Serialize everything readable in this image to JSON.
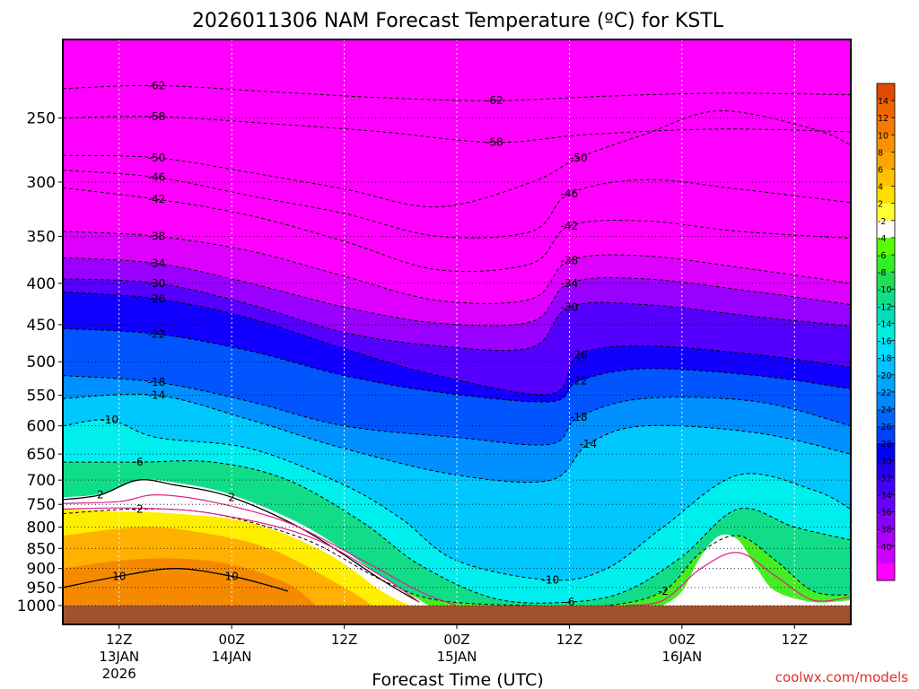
{
  "chart_data": {
    "type": "heatmap",
    "title": "2026011306 NAM Forecast Temperature (ºC) for KSTL",
    "xlabel": "Forecast Time (UTC)",
    "ylabel": "",
    "watermark": "coolwx.com/models",
    "y_scale": "log-pressure",
    "ylim": [
      1000,
      200
    ],
    "y_ticks": [
      250,
      300,
      350,
      400,
      450,
      500,
      550,
      600,
      650,
      700,
      750,
      800,
      850,
      900,
      950,
      1000
    ],
    "y_tick_labels": [
      "250",
      "300",
      "350",
      "400",
      "450",
      "500",
      "550",
      "600",
      "650",
      "700",
      "750",
      "800",
      "850",
      "900",
      "950",
      "1000"
    ],
    "x_range_hours": [
      0,
      84
    ],
    "x_ticks": [
      {
        "hour": 6,
        "line1": "12Z",
        "line2": "13JAN",
        "line3": "2026"
      },
      {
        "hour": 18,
        "line1": "00Z",
        "line2": "14JAN",
        "line3": ""
      },
      {
        "hour": 30,
        "line1": "12Z",
        "line2": "",
        "line3": ""
      },
      {
        "hour": 42,
        "line1": "00Z",
        "line2": "15JAN",
        "line3": ""
      },
      {
        "hour": 54,
        "line1": "12Z",
        "line2": "",
        "line3": ""
      },
      {
        "hour": 66,
        "line1": "00Z",
        "line2": "16JAN",
        "line3": ""
      },
      {
        "hour": 78,
        "line1": "12Z",
        "line2": "",
        "line3": ""
      }
    ],
    "grid": true,
    "surface_pressure": 1000,
    "surface_color": "#a0522d",
    "colorbar": {
      "placement": "right",
      "labels": [
        "14",
        "12",
        "10",
        "8",
        "6",
        "4",
        "2",
        "-2",
        "-4",
        "-6",
        "-8",
        "-10",
        "-12",
        "-14",
        "-16",
        "-18",
        "-20",
        "-22",
        "-24",
        "-26",
        "-28",
        "-30",
        "-32",
        "-34",
        "-36",
        "-38",
        "-40"
      ],
      "colors": [
        "#e04a00",
        "#ee6400",
        "#f57a00",
        "#fa9000",
        "#ffa500",
        "#ffc000",
        "#ffdd00",
        "#ffff33",
        "#ffffff",
        "#55ff00",
        "#33ee22",
        "#22dd55",
        "#11dd88",
        "#00ddbb",
        "#00eedd",
        "#00ddff",
        "#00c0ff",
        "#00a5ff",
        "#0088ff",
        "#0066ff",
        "#0040ff",
        "#0000ff",
        "#2200ee",
        "#4400ff",
        "#6600ff",
        "#8800ff",
        "#aa00ff",
        "#cc00ff",
        "#ff00ff"
      ]
    },
    "isotherms": [
      {
        "temp": -62,
        "label": "-62",
        "points": [
          [
            0,
            230
          ],
          [
            10,
            228
          ],
          [
            22,
            232
          ],
          [
            34,
            236
          ],
          [
            46,
            238
          ],
          [
            58,
            235
          ],
          [
            70,
            233
          ],
          [
            84,
            234
          ]
        ]
      },
      {
        "temp": -58,
        "label": "-58",
        "points": [
          [
            0,
            250
          ],
          [
            10,
            249
          ],
          [
            22,
            254
          ],
          [
            34,
            260
          ],
          [
            46,
            268
          ],
          [
            56,
            262
          ],
          [
            70,
            258
          ],
          [
            84,
            260
          ]
        ]
      },
      {
        "temp": -50,
        "label": "-50",
        "points": [
          [
            0,
            278
          ],
          [
            10,
            280
          ],
          [
            20,
            292
          ],
          [
            30,
            306
          ],
          [
            40,
            322
          ],
          [
            50,
            300
          ],
          [
            55,
            280
          ],
          [
            62,
            262
          ],
          [
            70,
            245
          ],
          [
            80,
            258
          ],
          [
            84,
            270
          ]
        ]
      },
      {
        "temp": -46,
        "label": "-46",
        "points": [
          [
            0,
            290
          ],
          [
            10,
            296
          ],
          [
            20,
            312
          ],
          [
            30,
            328
          ],
          [
            40,
            350
          ],
          [
            50,
            345
          ],
          [
            54,
            310
          ],
          [
            62,
            298
          ],
          [
            72,
            306
          ],
          [
            84,
            318
          ]
        ]
      },
      {
        "temp": -42,
        "label": "-42",
        "points": [
          [
            0,
            305
          ],
          [
            10,
            315
          ],
          [
            20,
            330
          ],
          [
            30,
            355
          ],
          [
            40,
            385
          ],
          [
            50,
            378
          ],
          [
            54,
            340
          ],
          [
            62,
            335
          ],
          [
            72,
            345
          ],
          [
            84,
            352
          ]
        ]
      },
      {
        "temp": -38,
        "label": "-38",
        "points": [
          [
            0,
            345
          ],
          [
            10,
            350
          ],
          [
            20,
            365
          ],
          [
            30,
            392
          ],
          [
            40,
            420
          ],
          [
            50,
            418
          ],
          [
            54,
            375
          ],
          [
            62,
            370
          ],
          [
            74,
            385
          ],
          [
            84,
            400
          ]
        ]
      },
      {
        "temp": -34,
        "label": "-34",
        "points": [
          [
            0,
            372
          ],
          [
            10,
            378
          ],
          [
            20,
            400
          ],
          [
            30,
            428
          ],
          [
            40,
            448
          ],
          [
            50,
            446
          ],
          [
            54,
            400
          ],
          [
            62,
            395
          ],
          [
            74,
            410
          ],
          [
            84,
            425
          ]
        ]
      },
      {
        "temp": -30,
        "label": "-30",
        "points": [
          [
            0,
            395
          ],
          [
            10,
            400
          ],
          [
            20,
            425
          ],
          [
            30,
            460
          ],
          [
            40,
            478
          ],
          [
            50,
            480
          ],
          [
            54,
            428
          ],
          [
            62,
            425
          ],
          [
            74,
            440
          ],
          [
            84,
            452
          ]
        ]
      },
      {
        "temp": -26,
        "label": "-26",
        "points": [
          [
            0,
            410
          ],
          [
            10,
            418
          ],
          [
            20,
            442
          ],
          [
            30,
            482
          ],
          [
            40,
            520
          ],
          [
            52,
            548
          ],
          [
            55,
            490
          ],
          [
            62,
            478
          ],
          [
            74,
            490
          ],
          [
            84,
            508
          ]
        ]
      },
      {
        "temp": -22,
        "label": "-22",
        "points": [
          [
            0,
            455
          ],
          [
            10,
            462
          ],
          [
            20,
            485
          ],
          [
            30,
            520
          ],
          [
            40,
            545
          ],
          [
            52,
            560
          ],
          [
            55,
            528
          ],
          [
            62,
            510
          ],
          [
            74,
            520
          ],
          [
            84,
            540
          ]
        ]
      },
      {
        "temp": -18,
        "label": "-18",
        "points": [
          [
            0,
            520
          ],
          [
            10,
            530
          ],
          [
            20,
            560
          ],
          [
            30,
            600
          ],
          [
            42,
            620
          ],
          [
            52,
            632
          ],
          [
            55,
            585
          ],
          [
            62,
            555
          ],
          [
            74,
            560
          ],
          [
            84,
            600
          ]
        ]
      },
      {
        "temp": -14,
        "label": "-14",
        "points": [
          [
            0,
            555
          ],
          [
            10,
            550
          ],
          [
            20,
            590
          ],
          [
            30,
            640
          ],
          [
            42,
            690
          ],
          [
            52,
            700
          ],
          [
            56,
            632
          ],
          [
            62,
            600
          ],
          [
            74,
            612
          ],
          [
            84,
            650
          ]
        ]
      },
      {
        "temp": -10,
        "label": "-10",
        "points": [
          [
            0,
            600
          ],
          [
            5,
            590
          ],
          [
            10,
            620
          ],
          [
            20,
            640
          ],
          [
            30,
            710
          ],
          [
            36,
            780
          ],
          [
            42,
            880
          ],
          [
            52,
            930
          ],
          [
            58,
            900
          ],
          [
            64,
            800
          ],
          [
            72,
            690
          ],
          [
            80,
            720
          ],
          [
            84,
            760
          ]
        ]
      },
      {
        "temp": -6,
        "label": "-6",
        "points": [
          [
            0,
            665
          ],
          [
            8,
            665
          ],
          [
            16,
            665
          ],
          [
            24,
            700
          ],
          [
            32,
            790
          ],
          [
            38,
            890
          ],
          [
            46,
            980
          ],
          [
            54,
            990
          ],
          [
            60,
            960
          ],
          [
            66,
            870
          ],
          [
            72,
            760
          ],
          [
            78,
            800
          ],
          [
            84,
            830
          ]
        ]
      },
      {
        "temp": -2,
        "label": "-2",
        "points": [
          [
            0,
            770
          ],
          [
            8,
            760
          ],
          [
            16,
            770
          ],
          [
            26,
            830
          ],
          [
            34,
            930
          ],
          [
            40,
            985
          ],
          [
            50,
            1000
          ],
          [
            58,
            1000
          ],
          [
            64,
            960
          ],
          [
            68,
            860
          ],
          [
            72,
            820
          ],
          [
            76,
            880
          ],
          [
            80,
            960
          ],
          [
            84,
            970
          ]
        ]
      },
      {
        "temp": 2,
        "label": "2",
        "points": [
          [
            0,
            740
          ],
          [
            4,
            730
          ],
          [
            8,
            700
          ],
          [
            12,
            710
          ],
          [
            18,
            735
          ],
          [
            26,
            810
          ],
          [
            34,
            930
          ],
          [
            38,
            990
          ]
        ]
      },
      {
        "temp": 10,
        "label": "10",
        "points": [
          [
            0,
            950
          ],
          [
            6,
            920
          ],
          [
            12,
            900
          ],
          [
            18,
            920
          ],
          [
            22,
            945
          ],
          [
            24,
            960
          ]
        ]
      }
    ],
    "fill_bands": [
      {
        "bin": "<-40",
        "upper": [
          [
            0,
            200
          ],
          [
            84,
            200
          ]
        ],
        "lower": [
          [
            0,
            345
          ],
          [
            10,
            350
          ],
          [
            20,
            365
          ],
          [
            30,
            392
          ],
          [
            40,
            420
          ],
          [
            50,
            418
          ],
          [
            54,
            375
          ],
          [
            62,
            370
          ],
          [
            74,
            385
          ],
          [
            84,
            400
          ]
        ]
      }
    ]
  }
}
